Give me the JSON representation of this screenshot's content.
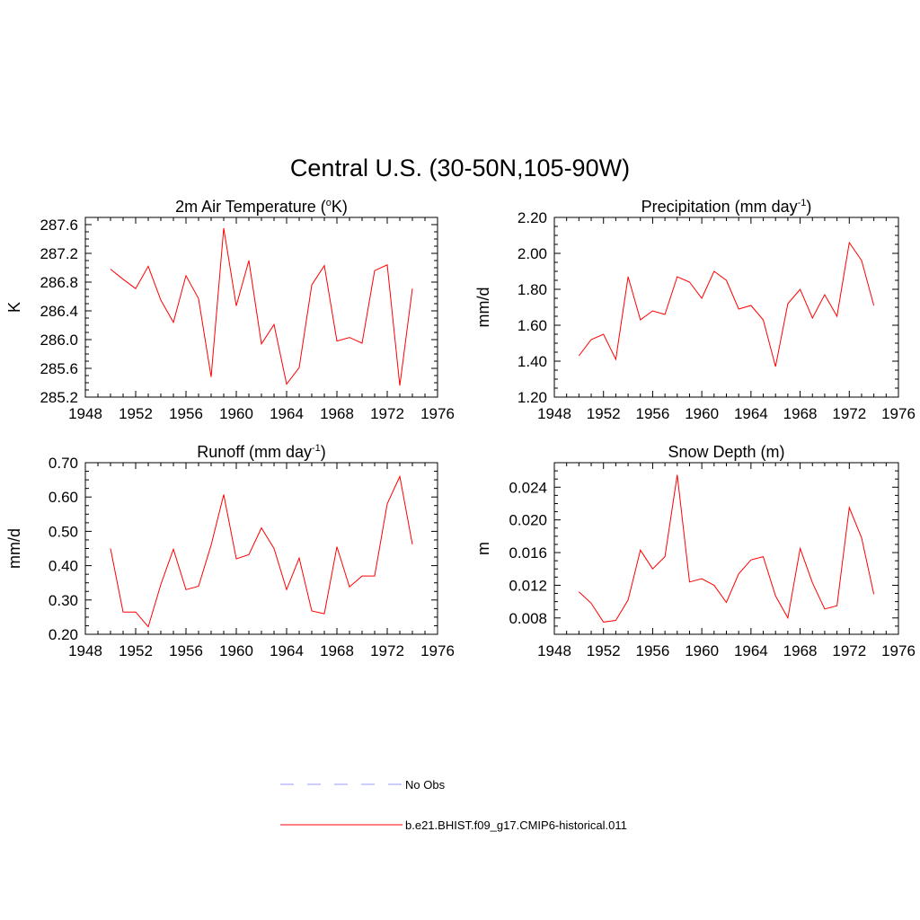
{
  "title": "Central U.S. (30-50N,105-90W)",
  "colors": {
    "model": "#ff0000",
    "obs": "#9999ff",
    "axis": "#000000"
  },
  "legend": [
    {
      "label": "No Obs",
      "style": "dashed",
      "color": "#9999ff"
    },
    {
      "label": "b.e21.BHIST.f09_g17.CMIP6-historical.011",
      "style": "solid",
      "color": "#ff0000"
    }
  ],
  "chart_data": [
    {
      "type": "line",
      "title": "2m Air Temperature (",
      "title_sup": "o",
      "title_after": "K)",
      "ylabel": "K",
      "xlim": [
        1948,
        1976
      ],
      "ylim": [
        285.2,
        287.7
      ],
      "xticks": [
        "1948",
        "1952",
        "1956",
        "1960",
        "1964",
        "1968",
        "1972",
        "1976"
      ],
      "yticks": [
        "285.2",
        "285.6",
        "286.0",
        "286.4",
        "286.8",
        "287.2",
        "287.6"
      ],
      "x": [
        1950,
        1951,
        1952,
        1953,
        1954,
        1955,
        1956,
        1957,
        1958,
        1959,
        1960,
        1961,
        1962,
        1963,
        1964,
        1965,
        1966,
        1967,
        1968,
        1969,
        1970,
        1971,
        1972,
        1973,
        1974
      ],
      "series": [
        {
          "values": [
            286.98,
            286.84,
            286.71,
            287.02,
            286.55,
            286.24,
            286.89,
            286.57,
            285.48,
            287.55,
            286.47,
            287.1,
            285.94,
            286.21,
            285.38,
            285.61,
            286.76,
            287.03,
            285.98,
            286.03,
            285.95,
            286.96,
            287.04,
            285.36,
            286.71
          ]
        }
      ]
    },
    {
      "type": "line",
      "title": "Precipitation (mm day",
      "title_sup": "-1",
      "title_after": ")",
      "ylabel": "mm/d",
      "xlim": [
        1948,
        1976
      ],
      "ylim": [
        1.2,
        2.2
      ],
      "xticks": [
        "1948",
        "1952",
        "1956",
        "1960",
        "1964",
        "1968",
        "1972",
        "1976"
      ],
      "yticks": [
        "1.20",
        "1.40",
        "1.60",
        "1.80",
        "2.00",
        "2.20"
      ],
      "x": [
        1950,
        1951,
        1952,
        1953,
        1954,
        1955,
        1956,
        1957,
        1958,
        1959,
        1960,
        1961,
        1962,
        1963,
        1964,
        1965,
        1966,
        1967,
        1968,
        1969,
        1970,
        1971,
        1972,
        1973,
        1974
      ],
      "series": [
        {
          "values": [
            1.43,
            1.52,
            1.55,
            1.41,
            1.87,
            1.63,
            1.68,
            1.66,
            1.87,
            1.84,
            1.75,
            1.9,
            1.85,
            1.69,
            1.71,
            1.63,
            1.37,
            1.72,
            1.8,
            1.64,
            1.77,
            1.65,
            2.06,
            1.96,
            1.71
          ]
        }
      ]
    },
    {
      "type": "line",
      "title": "Runoff (mm day",
      "title_sup": "-1",
      "title_after": ")",
      "ylabel": "mm/d",
      "xlim": [
        1948,
        1976
      ],
      "ylim": [
        0.2,
        0.7
      ],
      "xticks": [
        "1948",
        "1952",
        "1956",
        "1960",
        "1964",
        "1968",
        "1972",
        "1976"
      ],
      "yticks": [
        "0.20",
        "0.30",
        "0.40",
        "0.50",
        "0.60",
        "0.70"
      ],
      "x": [
        1950,
        1951,
        1952,
        1953,
        1954,
        1955,
        1956,
        1957,
        1958,
        1959,
        1960,
        1961,
        1962,
        1963,
        1964,
        1965,
        1966,
        1967,
        1968,
        1969,
        1970,
        1971,
        1972,
        1973,
        1974
      ],
      "series": [
        {
          "values": [
            0.45,
            0.265,
            0.265,
            0.222,
            0.345,
            0.448,
            0.33,
            0.34,
            0.46,
            0.607,
            0.42,
            0.432,
            0.51,
            0.45,
            0.33,
            0.422,
            0.268,
            0.26,
            0.455,
            0.338,
            0.37,
            0.37,
            0.58,
            0.66,
            0.462
          ]
        }
      ]
    },
    {
      "type": "line",
      "title": "Snow Depth (m)",
      "title_sup": "",
      "title_after": "",
      "ylabel": "m",
      "xlim": [
        1948,
        1976
      ],
      "ylim": [
        0.006,
        0.027
      ],
      "xticks": [
        "1948",
        "1952",
        "1956",
        "1960",
        "1964",
        "1968",
        "1972",
        "1976"
      ],
      "yticks": [
        "0.008",
        "0.012",
        "0.016",
        "0.020",
        "0.024"
      ],
      "x": [
        1950,
        1951,
        1952,
        1953,
        1954,
        1955,
        1956,
        1957,
        1958,
        1959,
        1960,
        1961,
        1962,
        1963,
        1964,
        1965,
        1966,
        1967,
        1968,
        1969,
        1970,
        1971,
        1972,
        1973,
        1974
      ],
      "series": [
        {
          "values": [
            0.0112,
            0.0098,
            0.0075,
            0.0077,
            0.0102,
            0.0163,
            0.014,
            0.0155,
            0.0255,
            0.0124,
            0.0128,
            0.012,
            0.0099,
            0.0134,
            0.0151,
            0.0155,
            0.0107,
            0.008,
            0.0165,
            0.0123,
            0.0091,
            0.0095,
            0.0215,
            0.0178,
            0.0109
          ]
        }
      ]
    }
  ]
}
